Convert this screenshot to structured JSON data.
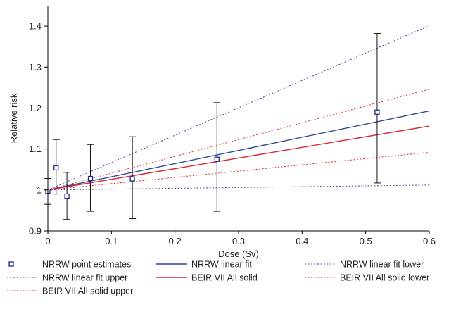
{
  "chart_data": {
    "type": "scatter",
    "xlabel": "Dose (Sv)",
    "ylabel": "Relative risk",
    "xlim": [
      0,
      0.6
    ],
    "ylim": [
      0.9,
      1.45
    ],
    "x_ticks": [
      0,
      0.1,
      0.2,
      0.3,
      0.4,
      0.5,
      0.6
    ],
    "x_tick_labels": [
      "0",
      "0.1",
      "0.2",
      "0.3",
      "0.4",
      "0.5",
      "0.6"
    ],
    "y_ticks": [
      0.9,
      1.0,
      1.1,
      1.2,
      1.3,
      1.4
    ],
    "y_tick_labels": [
      "0.9",
      "1",
      "1.1",
      "1.2",
      "1.3",
      "1.4"
    ],
    "grid": false,
    "legend_position": "bottom",
    "series": [
      {
        "name": "NRRW point estimates",
        "kind": "points",
        "color": "#1f2a8c",
        "x": [
          0.0,
          0.013,
          0.03,
          0.067,
          0.133,
          0.266,
          0.518
        ],
        "y": [
          0.997,
          1.054,
          0.985,
          1.028,
          1.027,
          1.075,
          1.19
        ],
        "error_lower": [
          0.965,
          0.99,
          0.928,
          0.948,
          0.93,
          0.948,
          1.017
        ],
        "error_upper": [
          1.028,
          1.123,
          1.043,
          1.111,
          1.13,
          1.213,
          1.382
        ]
      },
      {
        "name": "NRRW linear fit",
        "kind": "line",
        "style": "solid",
        "color": "#2c4a9c",
        "x": [
          0,
          0.6
        ],
        "y": [
          1.0,
          1.193
        ]
      },
      {
        "name": "NRRW linear fit lower",
        "kind": "line",
        "style": "dotted",
        "color": "#2c4a9c",
        "x": [
          0,
          0.6
        ],
        "y": [
          1.0,
          1.012
        ]
      },
      {
        "name": "NRRW linear fit upper",
        "kind": "line",
        "style": "dotted",
        "color": "#2c4a9c",
        "x": [
          0,
          0.6
        ],
        "y": [
          1.0,
          1.401
        ]
      },
      {
        "name": "BEIR VII All solid",
        "kind": "line",
        "style": "solid",
        "color": "#e0242b",
        "x": [
          0,
          0.6
        ],
        "y": [
          1.0,
          1.156
        ]
      },
      {
        "name": "BEIR VII All solid lower",
        "kind": "line",
        "style": "dotted",
        "color": "#e0242b",
        "x": [
          0,
          0.6
        ],
        "y": [
          1.0,
          1.092
        ]
      },
      {
        "name": "BEIR VII All solid upper",
        "kind": "line",
        "style": "dotted",
        "color": "#e0242b",
        "x": [
          0,
          0.6
        ],
        "y": [
          1.0,
          1.246
        ]
      }
    ]
  }
}
